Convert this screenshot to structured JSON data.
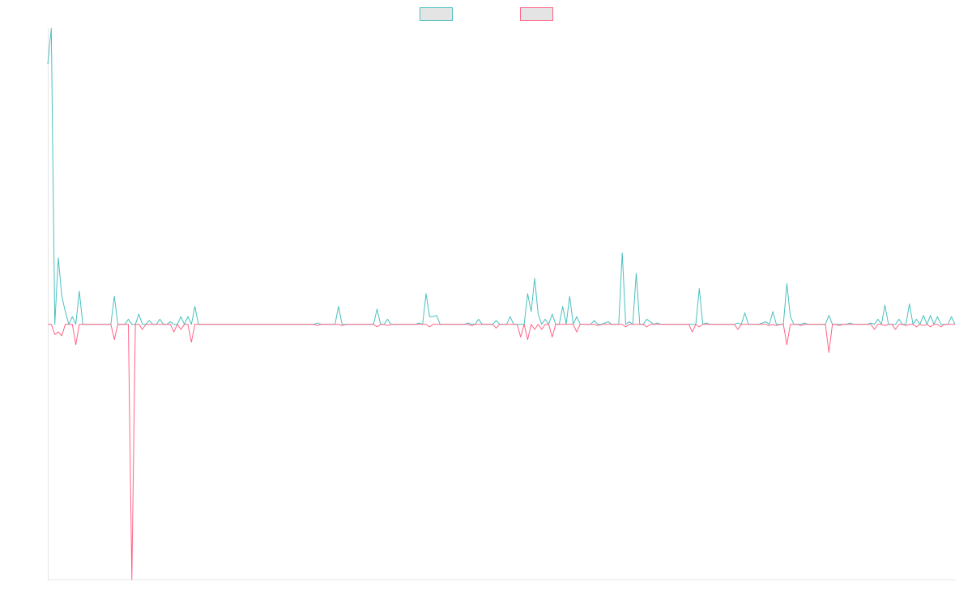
{
  "chart_data": {
    "type": "line",
    "title": "",
    "xlabel": "",
    "ylabel": "",
    "grid": false,
    "legend": "top-center",
    "ylim": [
      -10,
      11.6
    ],
    "x_count": 260,
    "series": [
      {
        "color": "#4bc0c0",
        "fill": "#e4e4e4",
        "points": [
          [
            0,
            10.2
          ],
          [
            1,
            11.6
          ],
          [
            2,
            0
          ],
          [
            3,
            2.6
          ],
          [
            4,
            1.1
          ],
          [
            5,
            0.5
          ],
          [
            6,
            0
          ],
          [
            7,
            0.3
          ],
          [
            8,
            0
          ],
          [
            9,
            1.3
          ],
          [
            10,
            0
          ],
          [
            19,
            1.1
          ],
          [
            20,
            0
          ],
          [
            23,
            0.2
          ],
          [
            24,
            0
          ],
          [
            26,
            0.4
          ],
          [
            27,
            0
          ],
          [
            29,
            0.15
          ],
          [
            30,
            0
          ],
          [
            32,
            0.2
          ],
          [
            33,
            0
          ],
          [
            35,
            0.1
          ],
          [
            36,
            0
          ],
          [
            38,
            0.3
          ],
          [
            39,
            0
          ],
          [
            40,
            0.3
          ],
          [
            41,
            0
          ],
          [
            42,
            0.7
          ],
          [
            43,
            0
          ],
          [
            60,
            0
          ],
          [
            70,
            0
          ],
          [
            77,
            0.05
          ],
          [
            78,
            0
          ],
          [
            83,
            0.7
          ],
          [
            84,
            0
          ],
          [
            94,
            0.6
          ],
          [
            95,
            0
          ],
          [
            97,
            0.2
          ],
          [
            98,
            0
          ],
          [
            106,
            0.05
          ],
          [
            107,
            0
          ],
          [
            108,
            1.2
          ],
          [
            109,
            0.3
          ],
          [
            110,
            0.3
          ],
          [
            111,
            0.35
          ],
          [
            112,
            0
          ],
          [
            120,
            0.05
          ],
          [
            121,
            0
          ],
          [
            123,
            0.2
          ],
          [
            124,
            0
          ],
          [
            125,
            0
          ],
          [
            126,
            0
          ],
          [
            128,
            0.15
          ],
          [
            129,
            0
          ],
          [
            132,
            0.3
          ],
          [
            133,
            0
          ],
          [
            135,
            0
          ],
          [
            136,
            0
          ],
          [
            137,
            1.2
          ],
          [
            138,
            0.5
          ],
          [
            139,
            1.8
          ],
          [
            140,
            0.4
          ],
          [
            141,
            0
          ],
          [
            142,
            0.2
          ],
          [
            143,
            0
          ],
          [
            144,
            0.4
          ],
          [
            145,
            0
          ],
          [
            146,
            0
          ],
          [
            147,
            0.7
          ],
          [
            148,
            0
          ],
          [
            149,
            1.1
          ],
          [
            150,
            0
          ],
          [
            151,
            0.3
          ],
          [
            152,
            0
          ],
          [
            156,
            0.15
          ],
          [
            157,
            0
          ],
          [
            159,
            0.05
          ],
          [
            160,
            0.1
          ],
          [
            161,
            0
          ],
          [
            164,
            2.8
          ],
          [
            165,
            0
          ],
          [
            166,
            0.1
          ],
          [
            167,
            0
          ],
          [
            168,
            2.0
          ],
          [
            169,
            0
          ],
          [
            170,
            0
          ],
          [
            171,
            0.2
          ],
          [
            172,
            0.1
          ],
          [
            173,
            0
          ],
          [
            174,
            0.05
          ],
          [
            175,
            0
          ],
          [
            185,
            0
          ],
          [
            186,
            1.4
          ],
          [
            187,
            0
          ],
          [
            188,
            0.05
          ],
          [
            189,
            0
          ],
          [
            192,
            0
          ],
          [
            197,
            0.05
          ],
          [
            198,
            0
          ],
          [
            199,
            0.45
          ],
          [
            200,
            0
          ],
          [
            203,
            0
          ],
          [
            204,
            0.05
          ],
          [
            205,
            0.1
          ],
          [
            206,
            0
          ],
          [
            207,
            0.5
          ],
          [
            208,
            0
          ],
          [
            209,
            0
          ],
          [
            210,
            0
          ],
          [
            211,
            1.6
          ],
          [
            212,
            0.3
          ],
          [
            213,
            0
          ],
          [
            216,
            0.05
          ],
          [
            217,
            0
          ],
          [
            222,
            0
          ],
          [
            223,
            0.35
          ],
          [
            224,
            0
          ],
          [
            229,
            0.05
          ],
          [
            230,
            0
          ],
          [
            232,
            0
          ],
          [
            233,
            0
          ],
          [
            235,
            0.05
          ],
          [
            236,
            0
          ],
          [
            237,
            0.2
          ],
          [
            238,
            0
          ],
          [
            239,
            0.75
          ],
          [
            240,
            0
          ],
          [
            241,
            0
          ],
          [
            242,
            0
          ],
          [
            243,
            0.2
          ],
          [
            244,
            0
          ],
          [
            245,
            0
          ],
          [
            246,
            0.8
          ],
          [
            247,
            0
          ],
          [
            248,
            0.2
          ],
          [
            249,
            0
          ],
          [
            250,
            0.35
          ],
          [
            251,
            0
          ],
          [
            252,
            0.35
          ],
          [
            253,
            0
          ],
          [
            254,
            0.3
          ],
          [
            255,
            0
          ],
          [
            256,
            0
          ],
          [
            257,
            0
          ],
          [
            258,
            0.3
          ]
        ]
      },
      {
        "color": "#ff6384",
        "fill": "#e4e4e4",
        "points": [
          [
            0,
            0
          ],
          [
            1,
            0
          ],
          [
            2,
            -0.4
          ],
          [
            3,
            -0.3
          ],
          [
            4,
            -0.45
          ],
          [
            5,
            0
          ],
          [
            6,
            0
          ],
          [
            7,
            0
          ],
          [
            8,
            -0.8
          ],
          [
            9,
            0
          ],
          [
            10,
            0
          ],
          [
            18,
            0
          ],
          [
            19,
            -0.6
          ],
          [
            20,
            0
          ],
          [
            22,
            0
          ],
          [
            23,
            0
          ],
          [
            24,
            -10
          ],
          [
            25,
            0
          ],
          [
            26,
            0
          ],
          [
            27,
            -0.2
          ],
          [
            28,
            0
          ],
          [
            29,
            0
          ],
          [
            30,
            0
          ],
          [
            35,
            0
          ],
          [
            36,
            -0.3
          ],
          [
            37,
            0
          ],
          [
            38,
            -0.2
          ],
          [
            39,
            0
          ],
          [
            40,
            0
          ],
          [
            41,
            -0.7
          ],
          [
            42,
            0
          ],
          [
            60,
            0
          ],
          [
            76,
            0
          ],
          [
            77,
            -0.05
          ],
          [
            78,
            0
          ],
          [
            83,
            0
          ],
          [
            84,
            -0.05
          ],
          [
            85,
            0
          ],
          [
            93,
            0
          ],
          [
            94,
            -0.1
          ],
          [
            95,
            0
          ],
          [
            96,
            0
          ],
          [
            97,
            -0.05
          ],
          [
            98,
            0
          ],
          [
            106,
            0
          ],
          [
            107,
            0
          ],
          [
            108,
            0
          ],
          [
            109,
            -0.1
          ],
          [
            110,
            0
          ],
          [
            120,
            0
          ],
          [
            121,
            -0.05
          ],
          [
            122,
            0
          ],
          [
            127,
            0
          ],
          [
            128,
            -0.15
          ],
          [
            129,
            0
          ],
          [
            134,
            0
          ],
          [
            135,
            -0.5
          ],
          [
            136,
            0
          ],
          [
            137,
            -0.6
          ],
          [
            138,
            0
          ],
          [
            139,
            -0.2
          ],
          [
            140,
            0
          ],
          [
            141,
            -0.2
          ],
          [
            142,
            0
          ],
          [
            143,
            0
          ],
          [
            144,
            -0.5
          ],
          [
            145,
            0
          ],
          [
            150,
            0
          ],
          [
            151,
            -0.3
          ],
          [
            152,
            0
          ],
          [
            156,
            0
          ],
          [
            157,
            -0.05
          ],
          [
            158,
            0
          ],
          [
            164,
            0
          ],
          [
            165,
            -0.1
          ],
          [
            166,
            0
          ],
          [
            170,
            0
          ],
          [
            171,
            -0.1
          ],
          [
            172,
            0
          ],
          [
            183,
            0
          ],
          [
            184,
            -0.3
          ],
          [
            185,
            0
          ],
          [
            186,
            -0.1
          ],
          [
            187,
            0
          ],
          [
            196,
            0
          ],
          [
            197,
            -0.2
          ],
          [
            198,
            0
          ],
          [
            205,
            0
          ],
          [
            206,
            -0.05
          ],
          [
            207,
            0
          ],
          [
            208,
            -0.05
          ],
          [
            209,
            0
          ],
          [
            210,
            0
          ],
          [
            211,
            -0.8
          ],
          [
            212,
            0
          ],
          [
            214,
            0
          ],
          [
            215,
            -0.05
          ],
          [
            216,
            0
          ],
          [
            222,
            0
          ],
          [
            223,
            -1.1
          ],
          [
            224,
            0
          ],
          [
            225,
            0
          ],
          [
            226,
            -0.05
          ],
          [
            227,
            0
          ],
          [
            235,
            0
          ],
          [
            236,
            -0.2
          ],
          [
            237,
            0
          ],
          [
            238,
            0
          ],
          [
            239,
            -0.05
          ],
          [
            240,
            0
          ],
          [
            241,
            0
          ],
          [
            242,
            -0.2
          ],
          [
            243,
            0
          ],
          [
            244,
            0
          ],
          [
            245,
            -0.05
          ],
          [
            246,
            0
          ],
          [
            247,
            0
          ],
          [
            248,
            -0.1
          ],
          [
            249,
            0
          ],
          [
            250,
            -0.05
          ],
          [
            251,
            0
          ],
          [
            252,
            -0.1
          ],
          [
            253,
            0
          ],
          [
            254,
            0
          ],
          [
            255,
            -0.1
          ],
          [
            256,
            0
          ],
          [
            257,
            0
          ],
          [
            258,
            0
          ]
        ]
      }
    ]
  }
}
